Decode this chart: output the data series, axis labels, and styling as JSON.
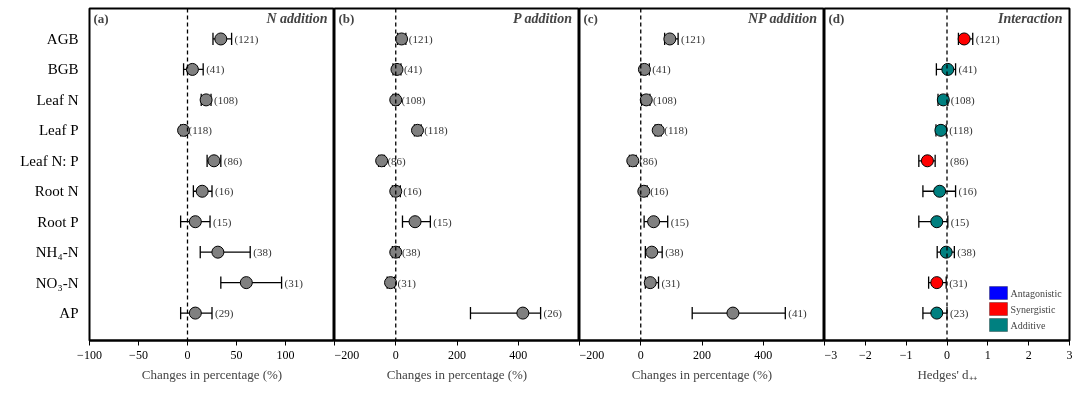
{
  "chart_data": [
    {
      "type": "scatter",
      "orientation": "horizontal",
      "title": "N addition",
      "xlabel": "Changes in percentage (%)",
      "categories": [
        "AGB",
        "BGB",
        "Leaf N",
        "Leaf P",
        "Leaf N: P",
        "Root N",
        "Root P",
        "NH₄-N",
        "NO₃-N",
        "AP"
      ],
      "series": [
        {
          "color": "#808080",
          "values": [
            34,
            5,
            19,
            -4,
            27,
            15,
            8,
            31,
            60,
            8
          ],
          "errors": [
            [
              26,
              45
            ],
            [
              -4,
              16
            ],
            [
              14,
              24
            ],
            [
              -7,
              -2
            ],
            [
              20,
              34
            ],
            [
              6,
              25
            ],
            [
              -7,
              23
            ],
            [
              13,
              64
            ],
            [
              34,
              96
            ],
            [
              -7,
              25
            ]
          ]
        }
      ],
      "xlim": [
        -100,
        150
      ],
      "xticks": [
        -100,
        -50,
        0,
        50,
        100
      ],
      "grid": false,
      "marker": "circle",
      "ref_lines": [
        {
          "axis": "x",
          "value": 0,
          "line_style": "dashed"
        }
      ],
      "annotations": [
        "(a)",
        {
          "text": "(121)",
          "x": 45,
          "y": "AGB"
        },
        {
          "text": "(41)",
          "x": 16,
          "y": "BGB"
        },
        {
          "text": "(108)",
          "x": 24,
          "y": "Leaf N"
        },
        {
          "text": "(118)",
          "x": -2,
          "y": "Leaf P"
        },
        {
          "text": "(86)",
          "x": 34,
          "y": "Leaf N: P"
        },
        {
          "text": "(16)",
          "x": 25,
          "y": "Root N"
        },
        {
          "text": "(15)",
          "x": 23,
          "y": "Root P"
        },
        {
          "text": "(38)",
          "x": 64,
          "y": "NH₄-N"
        },
        {
          "text": "(31)",
          "x": 96,
          "y": "NO₃-N"
        },
        {
          "text": "(29)",
          "x": 25,
          "y": "AP"
        }
      ]
    },
    {
      "type": "scatter",
      "orientation": "horizontal",
      "title": "P addition",
      "xlabel": "Changes in percentage (%)",
      "categories": [
        "AGB",
        "BGB",
        "Leaf N",
        "Leaf P",
        "Leaf N: P",
        "Root N",
        "Root P",
        "NH₄-N",
        "NO₃-N",
        "AP"
      ],
      "series": [
        {
          "color": "#808080",
          "values": [
            19,
            4,
            0,
            71,
            -46,
            0,
            63,
            0,
            -17,
            415
          ],
          "errors": [
            [
              6,
              33
            ],
            [
              -9,
              17
            ],
            [
              -9,
              9
            ],
            [
              61,
              83
            ],
            [
              -56,
              -37
            ],
            [
              -11,
              15
            ],
            [
              22,
              113
            ],
            [
              -11,
              11
            ],
            [
              -28,
              -4
            ],
            [
              244,
              473
            ]
          ]
        }
      ],
      "xlim": [
        -200,
        600
      ],
      "xticks": [
        -200,
        0,
        200,
        400
      ],
      "grid": false,
      "marker": "circle",
      "tick_labels": "x",
      "ref_lines": [
        {
          "axis": "x",
          "value": 0,
          "line_style": "dashed"
        }
      ],
      "annotations": [
        "(b)",
        {
          "text": "(121)",
          "x": 33,
          "y": "AGB"
        },
        {
          "text": "(41)",
          "x": 17,
          "y": "BGB"
        },
        {
          "text": "(108)",
          "x": 9,
          "y": "Leaf N"
        },
        {
          "text": "(118)",
          "x": 83,
          "y": "Leaf P"
        },
        {
          "text": "(86)",
          "x": -37,
          "y": "Leaf N: P"
        },
        {
          "text": "(16)",
          "x": 15,
          "y": "Root N"
        },
        {
          "text": "(15)",
          "x": 113,
          "y": "Root P"
        },
        {
          "text": "(38)",
          "x": 11,
          "y": "NH₄-N"
        },
        {
          "text": "(31)",
          "x": -4,
          "y": "NO₃-N"
        },
        {
          "text": "(26)",
          "x": 473,
          "y": "AP"
        }
      ]
    },
    {
      "type": "scatter",
      "orientation": "horizontal",
      "title": "NP addition",
      "xlabel": "Changes in percentage (%)",
      "categories": [
        "AGB",
        "BGB",
        "Leaf N",
        "Leaf P",
        "Leaf N: P",
        "Root N",
        "Root P",
        "NH₄-N",
        "NO₃-N",
        "AP"
      ],
      "series": [
        {
          "color": "#808080",
          "values": [
            95,
            12,
            18,
            57,
            -26,
            10,
            42,
            36,
            31,
            301
          ],
          "errors": [
            [
              78,
              122
            ],
            [
              1,
              28
            ],
            [
              3,
              30
            ],
            [
              47,
              67
            ],
            [
              -37,
              -15
            ],
            [
              -1,
              21
            ],
            [
              11,
              88
            ],
            [
              15,
              70
            ],
            [
              15,
              58
            ],
            [
              168,
              472
            ]
          ]
        }
      ],
      "xlim": [
        -200,
        600
      ],
      "xticks": [
        -200,
        0,
        200,
        400
      ],
      "grid": false,
      "marker": "circle",
      "tick_labels": "x",
      "ref_lines": [
        {
          "axis": "x",
          "value": 0,
          "line_style": "dashed"
        }
      ],
      "annotations": [
        "(c)",
        {
          "text": "(121)",
          "x": 122,
          "y": "AGB"
        },
        {
          "text": "(41)",
          "x": 28,
          "y": "BGB"
        },
        {
          "text": "(108)",
          "x": 30,
          "y": "Leaf N"
        },
        {
          "text": "(118)",
          "x": 67,
          "y": "Leaf P"
        },
        {
          "text": "(86)",
          "x": -15,
          "y": "Leaf N: P"
        },
        {
          "text": "(16)",
          "x": 21,
          "y": "Root N"
        },
        {
          "text": "(15)",
          "x": 88,
          "y": "Root P"
        },
        {
          "text": "(38)",
          "x": 70,
          "y": "NH₄-N"
        },
        {
          "text": "(31)",
          "x": 58,
          "y": "NO₃-N"
        },
        {
          "text": "(41)",
          "x": 472,
          "y": "AP"
        }
      ]
    },
    {
      "type": "scatter",
      "orientation": "horizontal",
      "title": "Interaction",
      "xlabel": "Hedges' d₊₊",
      "categories": [
        "AGB",
        "BGB",
        "Leaf N",
        "Leaf P",
        "Leaf N: P",
        "Root N",
        "Root P",
        "NH₄-N",
        "NO₃-N",
        "AP"
      ],
      "series": [
        {
          "name": "Antagonistic",
          "color": "#0000ff",
          "values": [
            null,
            null,
            null,
            null,
            null,
            null,
            null,
            null,
            null,
            null
          ],
          "errors": [
            null,
            null,
            null,
            null,
            null,
            null,
            null,
            null,
            null,
            null
          ]
        },
        {
          "name": "Synergistic",
          "color": "#ff0000",
          "values": [
            0.42,
            null,
            null,
            null,
            -0.48,
            null,
            null,
            null,
            -0.25,
            null
          ],
          "errors": [
            [
              0.28,
              0.63
            ],
            null,
            null,
            null,
            [
              -0.69,
              -0.29
            ],
            null,
            null,
            null,
            [
              -0.45,
              -0.02
            ],
            null
          ]
        },
        {
          "name": "Additive",
          "color": "#008080",
          "values": [
            null,
            0.02,
            -0.09,
            -0.15,
            null,
            -0.18,
            -0.25,
            -0.02,
            null,
            -0.25
          ],
          "errors": [
            null,
            [
              -0.26,
              0.21
            ],
            [
              -0.22,
              0.02
            ],
            [
              -0.27,
              -0.02
            ],
            null,
            [
              -0.59,
              0.21
            ],
            [
              -0.69,
              0.02
            ],
            [
              -0.24,
              0.18
            ],
            null,
            [
              -0.59,
              0
            ]
          ]
        }
      ],
      "xlim": [
        -3,
        3
      ],
      "xticks": [
        -3,
        -2,
        -1,
        0,
        1,
        2,
        3
      ],
      "grid": false,
      "marker": "circle",
      "tick_labels": "x",
      "legend": "bottom right",
      "ref_lines": [
        {
          "axis": "x",
          "value": 0,
          "line_style": "dashed"
        }
      ],
      "annotations": [
        "(d)",
        {
          "text": "(121)",
          "x": 0.63,
          "y": "AGB"
        },
        {
          "text": "(41)",
          "x": 0.21,
          "y": "BGB"
        },
        {
          "text": "(108)",
          "x": 0.02,
          "y": "Leaf N"
        },
        {
          "text": "(118)",
          "x": -0.02,
          "y": "Leaf P"
        },
        {
          "text": "(86)",
          "x": 0,
          "y": "Leaf N: P"
        },
        {
          "text": "(16)",
          "x": 0.21,
          "y": "Root N"
        },
        {
          "text": "(15)",
          "x": 0.02,
          "y": "Root P"
        },
        {
          "text": "(38)",
          "x": 0.18,
          "y": "NH₄-N"
        },
        {
          "text": "(31)",
          "x": -0.02,
          "y": "NO₃-N"
        },
        {
          "text": "(23)",
          "x": 0,
          "y": "AP"
        }
      ]
    }
  ]
}
